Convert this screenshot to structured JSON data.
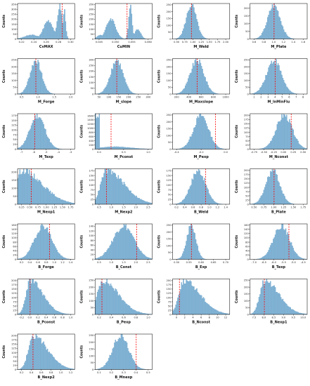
{
  "chart_data": [
    {
      "type": "histogram",
      "xlabel": "CvMAX",
      "ylabel": "Counts",
      "xticks": [
        "0.22",
        "0.24",
        "0.26",
        "0.28",
        "0.30"
      ],
      "yticks": [
        "0",
        "50",
        "100",
        "150",
        "200",
        "250",
        "300",
        "350"
      ],
      "ymax": 360,
      "ref_line": 0.78,
      "shape": "skewleft2",
      "peak": 0.74,
      "spread": 0.07
    },
    {
      "type": "histogram",
      "xlabel": "CuMIN",
      "ylabel": "Counts",
      "xticks": [
        "0.045",
        "0.050",
        "0.055",
        "0.060"
      ],
      "yticks": [
        "0",
        "50",
        "100",
        "150",
        "200",
        "250",
        "300",
        "350"
      ],
      "ymax": 360,
      "ref_line": 0.56,
      "shape": "bimodal",
      "peak": 0.62,
      "spread": 0.06
    },
    {
      "type": "histogram",
      "xlabel": "M_Weld",
      "ylabel": "Counts",
      "xticks": [
        "0.50",
        "0.75",
        "1.00",
        "1.25",
        "1.50",
        "1.75",
        "2.00"
      ],
      "yticks": [
        "0",
        "50",
        "100",
        "150",
        "200",
        "250"
      ],
      "ymax": 260,
      "ref_line": 0.33,
      "shape": "normal",
      "peak": 0.33,
      "spread": 0.09
    },
    {
      "type": "histogram",
      "xlabel": "M_Plate",
      "ylabel": "Counts",
      "xticks": [
        "0.6",
        "0.8",
        "1.0",
        "1.2",
        "1.4",
        "1.6"
      ],
      "yticks": [
        "0",
        "50",
        "100",
        "150",
        "200"
      ],
      "ymax": 230,
      "ref_line": 0.42,
      "shape": "normal",
      "peak": 0.42,
      "spread": 0.11
    },
    {
      "type": "histogram",
      "xlabel": "M_Forge",
      "ylabel": "Counts",
      "xticks": [
        "0.5",
        "1.0",
        "1.5",
        "2.0"
      ],
      "yticks": [
        "0",
        "50",
        "100",
        "150",
        "200",
        "250"
      ],
      "ymax": 260,
      "ref_line": 0.32,
      "shape": "normal",
      "peak": 0.32,
      "spread": 0.1
    },
    {
      "type": "histogram",
      "xlabel": "M_slope",
      "ylabel": "Counts",
      "xticks": [
        "50",
        "100",
        "150",
        "200",
        "250",
        "300"
      ],
      "yticks": [
        "0",
        "50",
        "100",
        "150",
        "200",
        "250",
        "300"
      ],
      "ymax": 310,
      "ref_line": 0.38,
      "shape": "normal",
      "peak": 0.38,
      "spread": 0.11
    },
    {
      "type": "histogram",
      "xlabel": "M_Maxslope",
      "ylabel": "Counts",
      "xticks": [
        "200",
        "400",
        "600",
        "800",
        "1000"
      ],
      "yticks": [
        "0",
        "50",
        "100",
        "150",
        "200",
        "250"
      ],
      "ymax": 260,
      "ref_line": 0.43,
      "shape": "normal",
      "peak": 0.43,
      "spread": 0.12
    },
    {
      "type": "histogram",
      "xlabel": "M_lnMinFlu",
      "ylabel": "Counts",
      "xticks": [
        "1",
        "2",
        "3",
        "4",
        "5",
        "6",
        "7",
        "8"
      ],
      "yticks": [
        "0",
        "50",
        "100",
        "150",
        "200",
        "250"
      ],
      "ymax": 260,
      "ref_line": 0.44,
      "shape": "normal",
      "peak": 0.42,
      "spread": 0.13
    },
    {
      "type": "histogram",
      "xlabel": "M_Texp",
      "ylabel": "Counts",
      "xticks": [
        "-7",
        "-6",
        "-5",
        "-4",
        "-3"
      ],
      "yticks": [
        "0",
        "25",
        "50",
        "75",
        "100",
        "125",
        "150",
        "175"
      ],
      "ymax": 185,
      "ref_line": 0.3,
      "shape": "normal",
      "peak": 0.35,
      "spread": 0.13
    },
    {
      "type": "histogram",
      "xlabel": "M_Pconst",
      "ylabel": "Counts",
      "xticks": [
        "0.0",
        "0.5",
        "1.0"
      ],
      "yticks": [
        "0",
        "200",
        "400",
        "600",
        "800",
        "1000",
        "1200",
        "1400",
        "1600"
      ],
      "ymax": 1700,
      "ref_line": 0.28,
      "shape": "spike",
      "peak": 0.04,
      "spread": 0.3
    },
    {
      "type": "histogram",
      "xlabel": "M_Pexp",
      "ylabel": "Counts",
      "xticks": [
        "-0.4",
        "-0.2",
        "0.0"
      ],
      "yticks": [
        "0",
        "50",
        "100",
        "150",
        "200",
        "250"
      ],
      "ymax": 260,
      "ref_line": 0.75,
      "shape": "normal",
      "peak": 0.5,
      "spread": 0.13
    },
    {
      "type": "histogram",
      "xlabel": "M_Nconst",
      "ylabel": "Counts",
      "xticks": [
        "-0.75",
        "-0.50",
        "-0.25",
        "0.00",
        "0.25",
        "0.50"
      ],
      "yticks": [
        "0",
        "25",
        "50",
        "75",
        "100",
        "125",
        "150",
        "175",
        "200"
      ],
      "ymax": 210,
      "ref_line": 0.72,
      "shape": "normal",
      "peak": 0.6,
      "spread": 0.14
    },
    {
      "type": "histogram",
      "xlabel": "M_Nexp1",
      "ylabel": "Counts",
      "xticks": [
        "0.25",
        "0.50",
        "0.75",
        "1.00",
        "1.25",
        "1.50",
        "1.75"
      ],
      "yticks": [
        "0",
        "50",
        "100",
        "150",
        "200"
      ],
      "ymax": 220,
      "ref_line": 0.24,
      "shape": "skewright",
      "peak": 0.08,
      "spread": 0.25
    },
    {
      "type": "histogram",
      "xlabel": "M_Nexp2",
      "ylabel": "Counts",
      "xticks": [
        "0.5",
        "1.0",
        "1.5",
        "2.0",
        "2.5"
      ],
      "yticks": [
        "0",
        "25",
        "50",
        "75",
        "100",
        "125",
        "150",
        "175"
      ],
      "ymax": 185,
      "ref_line": 0.2,
      "shape": "skewright",
      "peak": 0.2,
      "spread": 0.22
    },
    {
      "type": "histogram",
      "xlabel": "B_Weld",
      "ylabel": "Counts",
      "xticks": [
        "0.2",
        "0.4",
        "0.6",
        "0.8",
        "1.0",
        "1.2",
        "1.4"
      ],
      "yticks": [
        "0",
        "25",
        "50",
        "75",
        "100",
        "125",
        "150",
        "175"
      ],
      "ymax": 185,
      "ref_line": 0.58,
      "shape": "normal",
      "peak": 0.45,
      "spread": 0.13
    },
    {
      "type": "histogram",
      "xlabel": "B_Plate",
      "ylabel": "Counts",
      "xticks": [
        "0.50",
        "0.75",
        "1.00",
        "1.25",
        "1.50",
        "1.75"
      ],
      "yticks": [
        "0",
        "25",
        "50",
        "75",
        "100",
        "125",
        "150",
        "175",
        "200"
      ],
      "ymax": 210,
      "ref_line": 0.42,
      "shape": "normal",
      "peak": 0.4,
      "spread": 0.12
    },
    {
      "type": "histogram",
      "xlabel": "B_Forge",
      "ylabel": "Counts",
      "xticks": [
        "0.2",
        "0.4",
        "0.6",
        "0.8",
        "1.0",
        "1.2",
        "1.4"
      ],
      "yticks": [
        "0",
        "20",
        "40",
        "60",
        "80",
        "100",
        "120",
        "140",
        "160"
      ],
      "ymax": 165,
      "ref_line": 0.56,
      "shape": "normal",
      "peak": 0.45,
      "spread": 0.15
    },
    {
      "type": "histogram",
      "xlabel": "B_Const",
      "ylabel": "Counts",
      "xticks": [
        "0.5",
        "1.0",
        "1.5",
        "2.0",
        "2.5"
      ],
      "yticks": [
        "0",
        "20",
        "40",
        "60",
        "80",
        "100",
        "120",
        "140"
      ],
      "ymax": 150,
      "ref_line": 0.73,
      "shape": "normal",
      "peak": 0.5,
      "spread": 0.18
    },
    {
      "type": "histogram",
      "xlabel": "B_Exp",
      "ylabel": "Counts",
      "xticks": [
        "0.50",
        "0.55",
        "0.60",
        "0.65",
        "0.70"
      ],
      "yticks": [
        "0",
        "50",
        "100",
        "150",
        "200",
        "250"
      ],
      "ymax": 260,
      "ref_line": 0.33,
      "shape": "normal",
      "peak": 0.33,
      "spread": 0.08
    },
    {
      "type": "histogram",
      "xlabel": "B_Texp",
      "ylabel": "Counts",
      "xticks": [
        "-7.0",
        "-6.5",
        "-6.0",
        "-5.5",
        "-5.0",
        "-4.5"
      ],
      "yticks": [
        "0",
        "20",
        "40",
        "60",
        "80",
        "100",
        "120",
        "140",
        "160"
      ],
      "ymax": 165,
      "ref_line": 0.68,
      "shape": "normal",
      "peak": 0.55,
      "spread": 0.14
    },
    {
      "type": "histogram",
      "xlabel": "B_Pconst",
      "ylabel": "Counts",
      "xticks": [
        "-0.2",
        "0.0",
        "0.2",
        "0.4",
        "0.6",
        "0.8",
        "1.0"
      ],
      "yticks": [
        "0",
        "25",
        "50",
        "75",
        "100",
        "125",
        "150",
        "175",
        "200"
      ],
      "ymax": 210,
      "ref_line": 0.22,
      "shape": "skewright",
      "peak": 0.22,
      "spread": 0.16
    },
    {
      "type": "histogram",
      "xlabel": "B_Pexp",
      "ylabel": "Counts",
      "xticks": [
        "0.2",
        "0.4",
        "0.6",
        "0.8",
        "1.0"
      ],
      "yticks": [
        "0",
        "50",
        "100",
        "150",
        "200",
        "250"
      ],
      "ymax": 260,
      "ref_line": 0.12,
      "shape": "skewright",
      "peak": 0.13,
      "spread": 0.2
    },
    {
      "type": "histogram",
      "xlabel": "B_Nconst",
      "ylabel": "Counts",
      "xticks": [
        "0",
        "2",
        "4",
        "6",
        "8",
        "10",
        "12"
      ],
      "yticks": [
        "0",
        "25",
        "50",
        "75",
        "100",
        "125",
        "150",
        "175",
        "200"
      ],
      "ymax": 210,
      "ref_line": 0.12,
      "shape": "skewright",
      "peak": 0.2,
      "spread": 0.2
    },
    {
      "type": "histogram",
      "xlabel": "B_Nexp1",
      "ylabel": "Counts",
      "xticks": [
        "7.5",
        "8.0",
        "8.5",
        "9.0",
        "9.5",
        "10.0"
      ],
      "yticks": [
        "0",
        "50",
        "100",
        "150",
        "200",
        "250"
      ],
      "ymax": 260,
      "ref_line": 0.25,
      "shape": "skewright",
      "peak": 0.25,
      "spread": 0.18
    },
    {
      "type": "histogram",
      "xlabel": "B_Nexp2",
      "ylabel": "Counts",
      "xticks": [
        "0.2",
        "0.4",
        "0.6",
        "0.8",
        "1.0",
        "1.2"
      ],
      "yticks": [
        "0",
        "25",
        "50",
        "75",
        "100",
        "125",
        "150",
        "175",
        "200"
      ],
      "ymax": 210,
      "ref_line": 0.27,
      "shape": "skewright",
      "peak": 0.27,
      "spread": 0.18
    },
    {
      "type": "histogram",
      "xlabel": "B_Mnexp",
      "ylabel": "Counts",
      "xticks": [
        "0.1",
        "0.2",
        "0.3",
        "0.4",
        "0.5"
      ],
      "yticks": [
        "0",
        "50",
        "100",
        "150",
        "200",
        "250"
      ],
      "ymax": 260,
      "ref_line": 0.72,
      "shape": "normal",
      "peak": 0.45,
      "spread": 0.14
    }
  ],
  "colors": {
    "bar": "#7fb2d5",
    "ref_line": "#ff0000",
    "axis": "#222222"
  }
}
